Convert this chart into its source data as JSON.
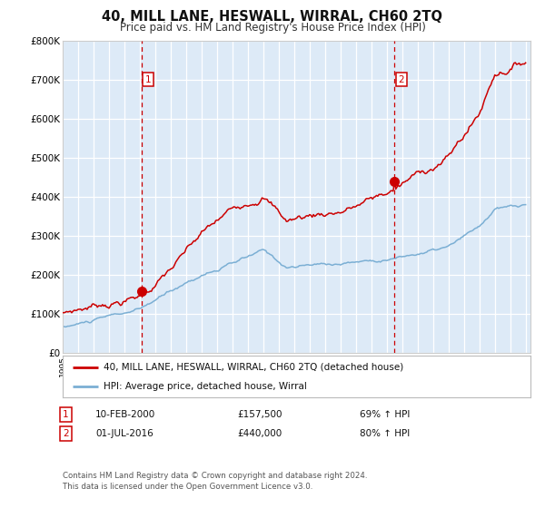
{
  "title": "40, MILL LANE, HESWALL, WIRRAL, CH60 2TQ",
  "subtitle": "Price paid vs. HM Land Registry's House Price Index (HPI)",
  "title_fontsize": 10.5,
  "subtitle_fontsize": 8.5,
  "ymin": 0,
  "ymax": 800000,
  "yticks": [
    0,
    100000,
    200000,
    300000,
    400000,
    500000,
    600000,
    700000,
    800000
  ],
  "plot_bg_color": "#ddeaf7",
  "grid_color": "#ffffff",
  "red_line_color": "#cc0000",
  "blue_line_color": "#7bafd4",
  "marker_color": "#cc0000",
  "dashed_line_color": "#cc0000",
  "legend_label_red": "40, MILL LANE, HESWALL, WIRRAL, CH60 2TQ (detached house)",
  "legend_label_blue": "HPI: Average price, detached house, Wirral",
  "sale1_date": "10-FEB-2000",
  "sale1_price": "£157,500",
  "sale1_info": "69% ↑ HPI",
  "sale1_year": 2000.1,
  "sale1_value": 157500,
  "sale2_date": "01-JUL-2016",
  "sale2_price": "£440,000",
  "sale2_info": "80% ↑ HPI",
  "sale2_year": 2016.5,
  "sale2_value": 440000,
  "footer_line1": "Contains HM Land Registry data © Crown copyright and database right 2024.",
  "footer_line2": "This data is licensed under the Open Government Licence v3.0."
}
